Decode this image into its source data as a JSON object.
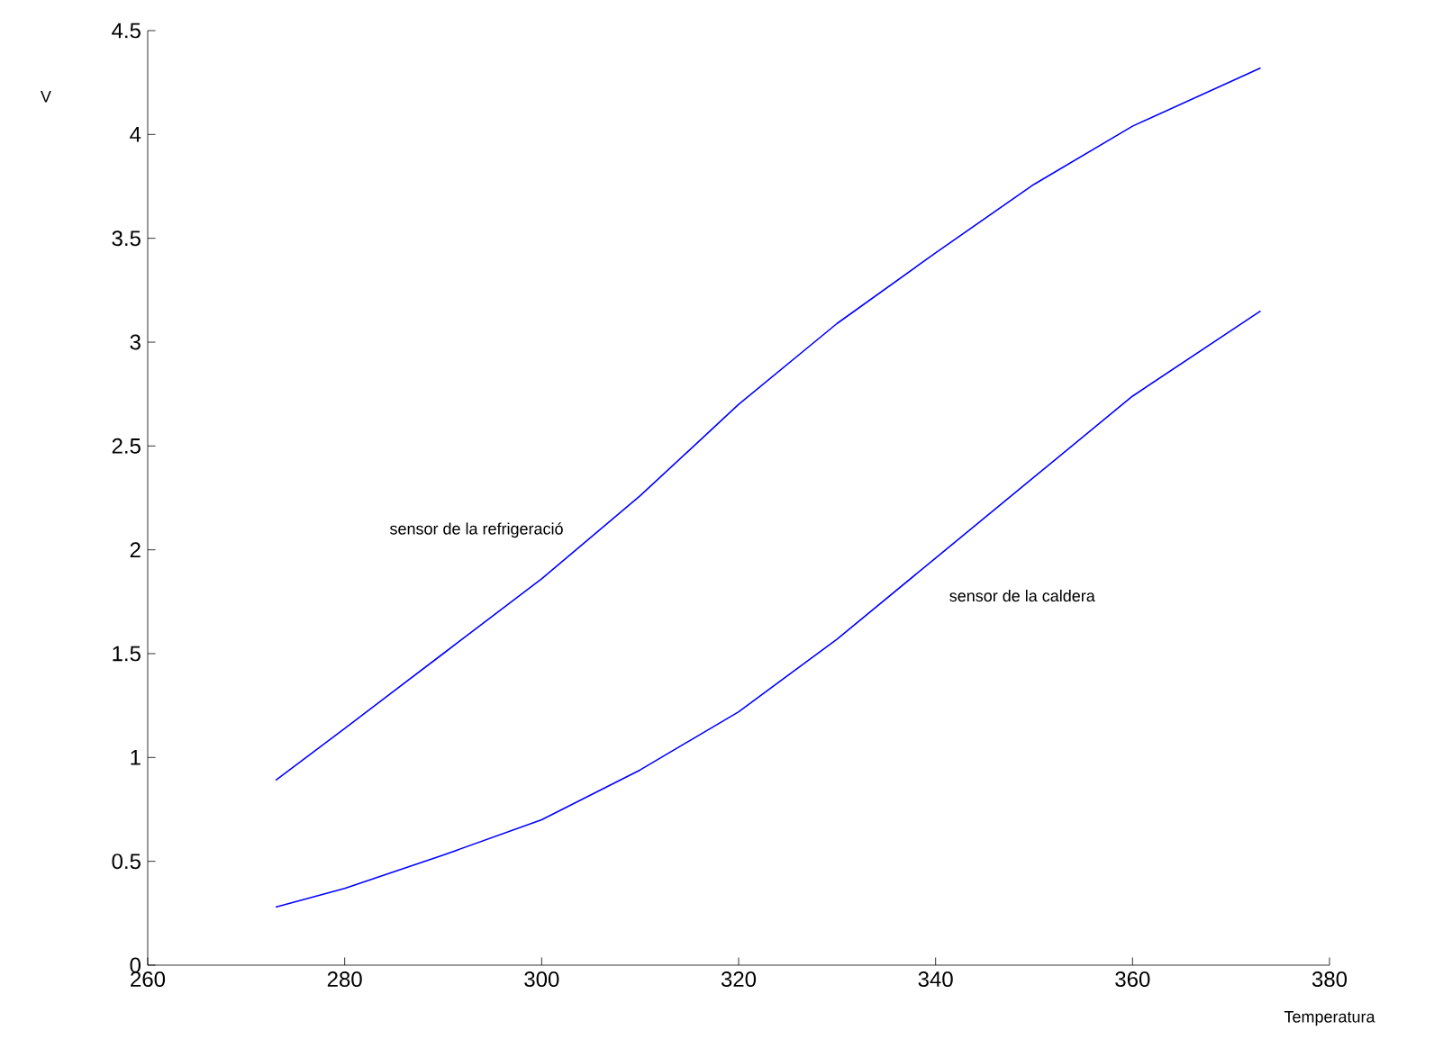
{
  "chart_data": {
    "type": "line",
    "xlabel": "Temperatura",
    "ylabel": "V",
    "xlim": [
      260,
      380
    ],
    "ylim": [
      0,
      4.5
    ],
    "xticks": [
      260,
      280,
      300,
      320,
      340,
      360,
      380
    ],
    "yticks": [
      0,
      0.5,
      1,
      1.5,
      2,
      2.5,
      3,
      3.5,
      4,
      4.5
    ],
    "grid": false,
    "legend": false,
    "marker": "none",
    "line_style": "solid",
    "series": [
      {
        "name": "sensor de la refrigeració",
        "color": "#0000ff",
        "x": [
          273,
          280,
          290,
          300,
          310,
          320,
          330,
          340,
          350,
          360,
          373
        ],
        "values": [
          0.89,
          1.14,
          1.5,
          1.86,
          2.26,
          2.7,
          3.09,
          3.43,
          3.76,
          4.04,
          4.32
        ]
      },
      {
        "name": "sensor de la caldera",
        "color": "#0000ff",
        "x": [
          273,
          280,
          290,
          300,
          310,
          320,
          330,
          340,
          350,
          360,
          373
        ],
        "values": [
          0.28,
          0.37,
          0.53,
          0.7,
          0.94,
          1.22,
          1.57,
          1.96,
          2.35,
          2.74,
          3.15
        ]
      }
    ]
  }
}
